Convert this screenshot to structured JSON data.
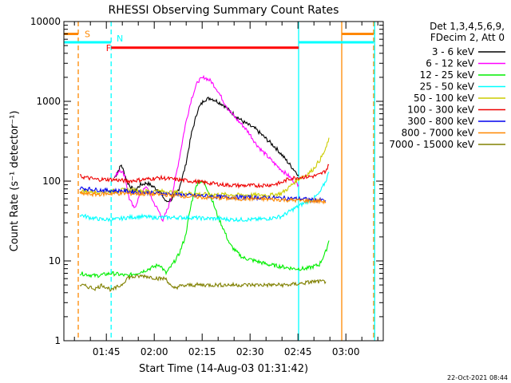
{
  "chart_data": {
    "type": "line",
    "title": "RHESSI Observing Summary Count Rates",
    "xlabel": "Start Time (14-Aug-03 01:31:42)",
    "ylabel": "Count Rate (s⁻¹ detector⁻¹)",
    "yscale": "log",
    "ylim": [
      1,
      10000
    ],
    "xlim_minutes": [
      0,
      100
    ],
    "x_tick_labels": [
      {
        "label": "01:45",
        "t": 13.3
      },
      {
        "label": "02:00",
        "t": 28.3
      },
      {
        "label": "02:15",
        "t": 43.3
      },
      {
        "label": "02:30",
        "t": 58.3
      },
      {
        "label": "02:45",
        "t": 73.3
      },
      {
        "label": "03:00",
        "t": 88.3
      }
    ],
    "y_tick_labels": [
      "1",
      "10",
      "100",
      "1000",
      "10000"
    ],
    "legend_header": [
      "Det 1,3,4,5,6,9,",
      "FDecim 2, Att 0"
    ],
    "legend": [
      {
        "label": "3 - 6 keV",
        "color": "#000000"
      },
      {
        "label": "6 - 12 keV",
        "color": "#ff00ff"
      },
      {
        "label": "12 - 25 keV",
        "color": "#00ee00"
      },
      {
        "label": "25 - 50 keV",
        "color": "#00ffff"
      },
      {
        "label": "50 - 100 keV",
        "color": "#cccc00"
      },
      {
        "label": "100 - 300 keV",
        "color": "#ee0000"
      },
      {
        "label": "300 - 800 keV",
        "color": "#0000ee"
      },
      {
        "label": "800 - 7000 keV",
        "color": "#ff8800"
      },
      {
        "label": "7000 - 15000 keV",
        "color": "#808000"
      }
    ],
    "flags": [
      {
        "label": "S",
        "color": "#ff8800"
      },
      {
        "label": "N",
        "color": "#00ffff"
      },
      {
        "label": "F",
        "color": "#ff0000"
      }
    ],
    "series": [
      {
        "name": "3 - 6 keV",
        "color": "#000000",
        "segments": [
          [
            [
              15.8,
              110
            ],
            [
              18,
              160
            ],
            [
              20,
              95
            ],
            [
              22,
              75
            ],
            [
              24,
              90
            ],
            [
              26,
              95
            ],
            [
              28,
              85
            ],
            [
              30,
              75
            ],
            [
              32,
              55
            ],
            [
              34,
              60
            ],
            [
              36,
              80
            ],
            [
              38,
              150
            ],
            [
              40,
              400
            ],
            [
              42,
              800
            ],
            [
              44,
              1050
            ],
            [
              46,
              1100
            ],
            [
              48,
              1000
            ],
            [
              50,
              900
            ],
            [
              52,
              750
            ],
            [
              54,
              650
            ],
            [
              56,
              560
            ],
            [
              58,
              500
            ],
            [
              60,
              450
            ],
            [
              62,
              380
            ],
            [
              64,
              320
            ],
            [
              66,
              270
            ],
            [
              68,
              220
            ],
            [
              70,
              175
            ],
            [
              72,
              140
            ],
            [
              73.5,
              120
            ]
          ]
        ]
      },
      {
        "name": "6 - 12 keV",
        "color": "#ff00ff",
        "segments": [
          [
            [
              15.8,
              110
            ],
            [
              17.5,
              140
            ],
            [
              19,
              120
            ],
            [
              20.5,
              60
            ],
            [
              22,
              45
            ],
            [
              24,
              70
            ],
            [
              26,
              85
            ],
            [
              28,
              55
            ],
            [
              30,
              40
            ],
            [
              31,
              32
            ],
            [
              32.5,
              45
            ],
            [
              34,
              70
            ],
            [
              36,
              180
            ],
            [
              38,
              500
            ],
            [
              40,
              1100
            ],
            [
              42,
              1800
            ],
            [
              44,
              2000
            ],
            [
              46,
              1800
            ],
            [
              48,
              1400
            ],
            [
              50,
              1000
            ],
            [
              52,
              750
            ],
            [
              54,
              600
            ],
            [
              56,
              500
            ],
            [
              58,
              400
            ],
            [
              60,
              300
            ],
            [
              62,
              240
            ],
            [
              64,
              200
            ],
            [
              66,
              165
            ],
            [
              68,
              140
            ],
            [
              70,
              120
            ],
            [
              72,
              100
            ],
            [
              73.5,
              90
            ]
          ]
        ]
      },
      {
        "name": "12 - 25 keV",
        "color": "#00ee00",
        "segments": [
          [
            [
              5,
              7
            ],
            [
              10,
              6.5
            ],
            [
              15,
              7
            ],
            [
              20,
              6.5
            ],
            [
              25,
              7.5
            ],
            [
              30,
              9
            ],
            [
              32,
              7
            ],
            [
              34,
              9
            ],
            [
              36,
              12
            ],
            [
              38,
              20
            ],
            [
              40,
              55
            ],
            [
              42,
              100
            ],
            [
              44,
              95
            ],
            [
              46,
              65
            ],
            [
              48,
              38
            ],
            [
              50,
              25
            ],
            [
              52,
              16
            ],
            [
              54,
              13
            ],
            [
              56,
              11
            ],
            [
              60,
              10
            ],
            [
              64,
              9
            ],
            [
              68,
              8.5
            ],
            [
              72,
              8
            ],
            [
              76,
              8
            ],
            [
              80,
              9
            ],
            [
              82,
              13
            ],
            [
              83,
              18
            ]
          ]
        ]
      },
      {
        "name": "25 - 50 keV",
        "color": "#00ffff",
        "segments": [
          [
            [
              5,
              38
            ],
            [
              8,
              35
            ],
            [
              12,
              33
            ],
            [
              16,
              33
            ],
            [
              20,
              35
            ],
            [
              24,
              36
            ],
            [
              28,
              35
            ],
            [
              32,
              35
            ],
            [
              36,
              35
            ],
            [
              40,
              35
            ],
            [
              44,
              34
            ],
            [
              48,
              34
            ],
            [
              52,
              33
            ],
            [
              56,
              33
            ],
            [
              60,
              33
            ],
            [
              64,
              34
            ],
            [
              68,
              36
            ],
            [
              70,
              40
            ],
            [
              72,
              45
            ],
            [
              74,
              50
            ],
            [
              76,
              55
            ],
            [
              78,
              60
            ],
            [
              80,
              70
            ],
            [
              82,
              100
            ],
            [
              83,
              130
            ]
          ]
        ]
      },
      {
        "name": "50 - 100 keV",
        "color": "#cccc00",
        "segments": [
          [
            [
              5,
              75
            ],
            [
              10,
              73
            ],
            [
              15,
              75
            ],
            [
              20,
              78
            ],
            [
              25,
              75
            ],
            [
              30,
              75
            ],
            [
              35,
              72
            ],
            [
              40,
              70
            ],
            [
              45,
              68
            ],
            [
              50,
              68
            ],
            [
              55,
              67
            ],
            [
              60,
              67
            ],
            [
              65,
              67
            ],
            [
              68,
              70
            ],
            [
              70,
              80
            ],
            [
              72,
              95
            ],
            [
              74,
              110
            ],
            [
              76,
              120
            ],
            [
              78,
              140
            ],
            [
              80,
              180
            ],
            [
              82,
              250
            ],
            [
              83,
              350
            ]
          ]
        ]
      },
      {
        "name": "100 - 300 keV",
        "color": "#ee0000",
        "segments": [
          [
            [
              5,
              115
            ],
            [
              10,
              105
            ],
            [
              15,
              105
            ],
            [
              20,
              100
            ],
            [
              25,
              105
            ],
            [
              30,
              110
            ],
            [
              35,
              105
            ],
            [
              40,
              100
            ],
            [
              45,
              95
            ],
            [
              50,
              90
            ],
            [
              55,
              88
            ],
            [
              60,
              88
            ],
            [
              65,
              90
            ],
            [
              68,
              95
            ],
            [
              70,
              105
            ],
            [
              72,
              110
            ],
            [
              74,
              112
            ],
            [
              76,
              113
            ],
            [
              78,
              115
            ],
            [
              80,
              120
            ],
            [
              82,
              135
            ],
            [
              83,
              160
            ]
          ]
        ]
      },
      {
        "name": "300 - 800 keV",
        "color": "#0000ee",
        "segments": [
          [
            [
              5,
              82
            ],
            [
              10,
              78
            ],
            [
              15,
              76
            ],
            [
              20,
              75
            ],
            [
              25,
              72
            ],
            [
              30,
              70
            ],
            [
              35,
              68
            ],
            [
              40,
              66
            ],
            [
              45,
              65
            ],
            [
              50,
              63
            ],
            [
              55,
              63
            ],
            [
              60,
              62
            ],
            [
              65,
              62
            ],
            [
              70,
              61
            ],
            [
              73.5,
              60
            ],
            [
              75,
              60
            ],
            [
              78,
              58
            ],
            [
              80,
              58
            ],
            [
              82,
              57
            ]
          ]
        ]
      },
      {
        "name": "800 - 7000 keV",
        "color": "#ff8800",
        "segments": [
          [
            [
              5,
              70
            ],
            [
              10,
              68
            ],
            [
              15,
              70
            ],
            [
              20,
              70
            ],
            [
              25,
              69
            ],
            [
              30,
              68
            ],
            [
              35,
              66
            ],
            [
              40,
              64
            ],
            [
              45,
              62
            ],
            [
              50,
              61
            ],
            [
              55,
              60
            ],
            [
              60,
              60
            ],
            [
              65,
              59
            ],
            [
              70,
              58
            ],
            [
              75,
              57
            ],
            [
              80,
              56
            ],
            [
              82,
              55
            ]
          ]
        ]
      },
      {
        "name": "7000 - 15000 keV",
        "color": "#808000",
        "segments": [
          [
            [
              5,
              5
            ],
            [
              10,
              4.5
            ],
            [
              12,
              5
            ],
            [
              15,
              4.3
            ],
            [
              18,
              5
            ],
            [
              20,
              6.2
            ],
            [
              25,
              6.5
            ],
            [
              30,
              6
            ],
            [
              32,
              6
            ],
            [
              34,
              4.5
            ],
            [
              36,
              4.8
            ],
            [
              40,
              5
            ],
            [
              45,
              5
            ],
            [
              50,
              5
            ],
            [
              55,
              5
            ],
            [
              60,
              5
            ],
            [
              65,
              5
            ],
            [
              70,
              5
            ],
            [
              74,
              5.2
            ],
            [
              78,
              5.5
            ],
            [
              80,
              5.5
            ],
            [
              82,
              5.5
            ]
          ]
        ]
      }
    ],
    "flag_bars": [
      {
        "label": "S",
        "color": "#ff8800",
        "y": 7000,
        "segments": [
          [
            0,
            4.5
          ],
          [
            87,
            97
          ]
        ]
      },
      {
        "label": "N",
        "color": "#00ffff",
        "y": 5500,
        "segments": [
          [
            0,
            14.8
          ],
          [
            73.5,
            97
          ]
        ]
      },
      {
        "label": "F",
        "color": "#ff0000",
        "y": 4700,
        "segments": [
          [
            14.8,
            73.5
          ]
        ]
      }
    ],
    "vlines": [
      {
        "t": 4.5,
        "color": "#ff8800",
        "dash": true
      },
      {
        "t": 14.8,
        "color": "#00ffff",
        "dash": true
      },
      {
        "t": 73.5,
        "color": "#00ffff",
        "dash": false
      },
      {
        "t": 87,
        "color": "#ff8800",
        "dash": false
      },
      {
        "t": 97,
        "color": "#ff8800",
        "dash": true
      },
      {
        "t": 97.3,
        "color": "#00ffff",
        "dash": false
      }
    ]
  },
  "footer_timestamp": "22-Oct-2021 08:44"
}
